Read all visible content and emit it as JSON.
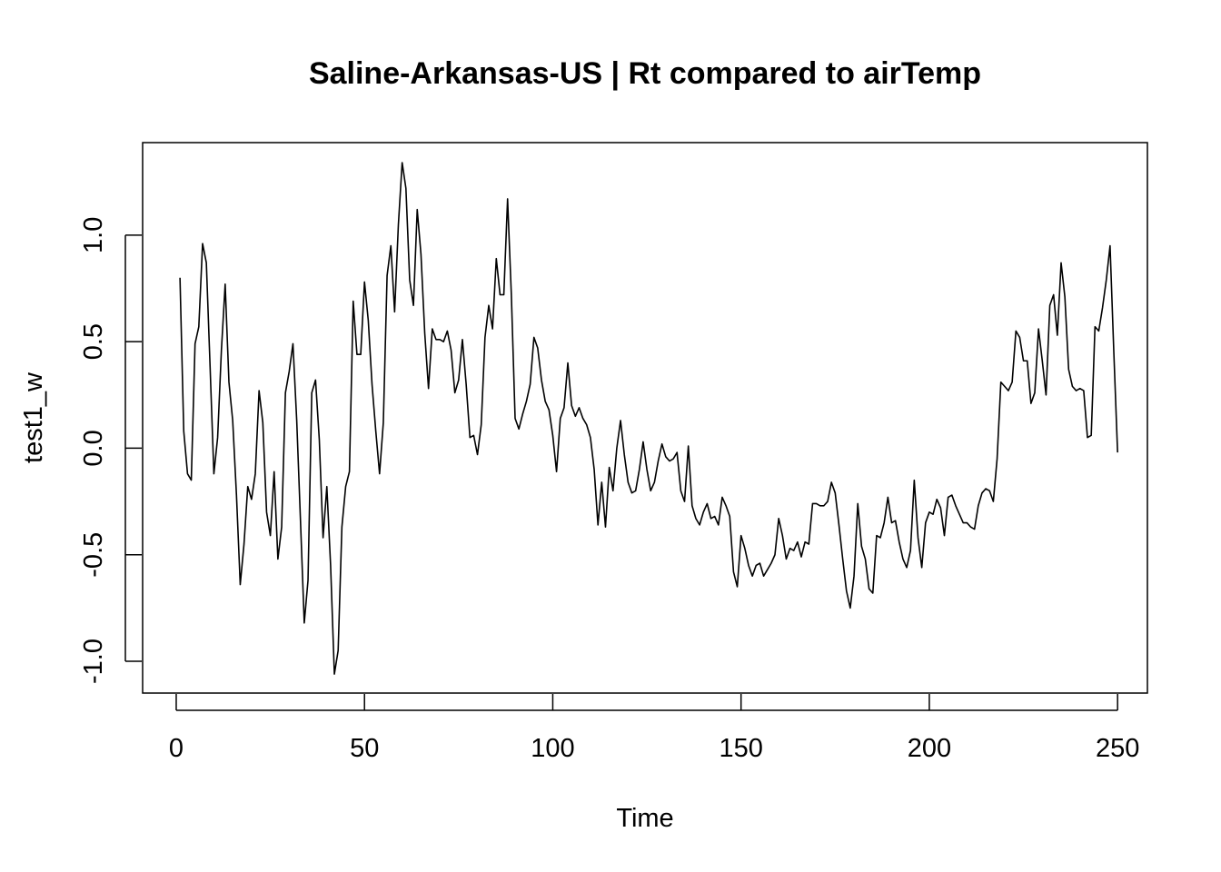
{
  "chart_data": {
    "type": "line",
    "title": "Saline-Arkansas-US | Rt compared to airTemp",
    "xlabel": "Time",
    "ylabel": "test1_w",
    "xlim": [
      -8.92,
      257.92
    ],
    "ylim": [
      -1.149,
      1.434
    ],
    "xticks": [
      0,
      50,
      100,
      150,
      200,
      250
    ],
    "yticks": [
      -1.0,
      -0.5,
      0.0,
      0.5,
      1.0
    ],
    "xtick_labels": [
      "0",
      "50",
      "100",
      "150",
      "200",
      "250"
    ],
    "ytick_labels": [
      "-1.0",
      "-0.5",
      "0.0",
      "0.5",
      "1.0"
    ],
    "grid": false,
    "legend": "none",
    "line_color": "#000000",
    "series": [
      {
        "x_start": 1,
        "values": [
          0.8,
          0.08,
          -0.12,
          -0.15,
          0.49,
          0.57,
          0.96,
          0.87,
          0.38,
          -0.12,
          0.05,
          0.46,
          0.77,
          0.31,
          0.13,
          -0.22,
          -0.64,
          -0.45,
          -0.18,
          -0.24,
          -0.12,
          0.27,
          0.12,
          -0.3,
          -0.41,
          -0.11,
          -0.52,
          -0.37,
          0.26,
          0.36,
          0.49,
          0.13,
          -0.34,
          -0.82,
          -0.62,
          0.26,
          0.32,
          0.04,
          -0.42,
          -0.18,
          -0.55,
          -1.06,
          -0.95,
          -0.37,
          -0.18,
          -0.11,
          0.69,
          0.44,
          0.44,
          0.78,
          0.6,
          0.3,
          0.08,
          -0.12,
          0.12,
          0.81,
          0.95,
          0.64,
          1.05,
          1.34,
          1.22,
          0.79,
          0.67,
          1.12,
          0.91,
          0.54,
          0.28,
          0.56,
          0.51,
          0.51,
          0.5,
          0.55,
          0.46,
          0.26,
          0.32,
          0.51,
          0.3,
          0.05,
          0.06,
          -0.03,
          0.11,
          0.52,
          0.67,
          0.56,
          0.89,
          0.72,
          0.72,
          1.17,
          0.72,
          0.14,
          0.09,
          0.16,
          0.22,
          0.3,
          0.52,
          0.47,
          0.32,
          0.22,
          0.18,
          0.06,
          -0.11,
          0.14,
          0.19,
          0.4,
          0.2,
          0.15,
          0.19,
          0.14,
          0.11,
          0.05,
          -0.1,
          -0.36,
          -0.16,
          -0.37,
          -0.09,
          -0.2,
          0.0,
          0.13,
          -0.03,
          -0.16,
          -0.21,
          -0.2,
          -0.1,
          0.03,
          -0.1,
          -0.2,
          -0.16,
          -0.06,
          0.02,
          -0.04,
          -0.06,
          -0.05,
          -0.02,
          -0.2,
          -0.25,
          0.01,
          -0.27,
          -0.33,
          -0.36,
          -0.3,
          -0.26,
          -0.33,
          -0.32,
          -0.36,
          -0.23,
          -0.27,
          -0.32,
          -0.58,
          -0.65,
          -0.41,
          -0.47,
          -0.55,
          -0.6,
          -0.55,
          -0.54,
          -0.6,
          -0.57,
          -0.54,
          -0.5,
          -0.33,
          -0.41,
          -0.52,
          -0.47,
          -0.48,
          -0.44,
          -0.51,
          -0.44,
          -0.45,
          -0.26,
          -0.26,
          -0.27,
          -0.27,
          -0.25,
          -0.16,
          -0.21,
          -0.36,
          -0.52,
          -0.67,
          -0.75,
          -0.6,
          -0.26,
          -0.46,
          -0.52,
          -0.66,
          -0.68,
          -0.41,
          -0.42,
          -0.35,
          -0.23,
          -0.35,
          -0.34,
          -0.44,
          -0.52,
          -0.56,
          -0.48,
          -0.15,
          -0.42,
          -0.56,
          -0.35,
          -0.3,
          -0.31,
          -0.24,
          -0.28,
          -0.41,
          -0.23,
          -0.22,
          -0.27,
          -0.31,
          -0.35,
          -0.35,
          -0.37,
          -0.38,
          -0.27,
          -0.21,
          -0.19,
          -0.2,
          -0.25,
          -0.05,
          0.31,
          0.29,
          0.27,
          0.31,
          0.55,
          0.52,
          0.41,
          0.41,
          0.21,
          0.26,
          0.56,
          0.41,
          0.25,
          0.67,
          0.72,
          0.53,
          0.87,
          0.71,
          0.37,
          0.29,
          0.27,
          0.28,
          0.27,
          0.05,
          0.06,
          0.57,
          0.55,
          0.66,
          0.79,
          0.95,
          0.45,
          -0.02
        ]
      }
    ]
  }
}
